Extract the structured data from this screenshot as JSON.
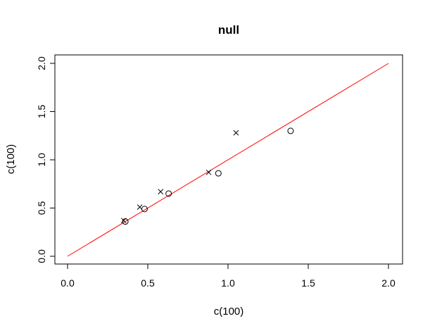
{
  "chart_data": {
    "type": "scatter",
    "title": "null",
    "xlabel": "c(100)",
    "ylabel": "c(100)",
    "xlim": [
      0,
      2
    ],
    "ylim": [
      0,
      2
    ],
    "xticks": [
      "0.0",
      "0.5",
      "1.0",
      "1.5",
      "2.0"
    ],
    "yticks": [
      "0.0",
      "0.5",
      "1.0",
      "1.5",
      "2.0"
    ],
    "grid": false,
    "series": [
      {
        "marker": "circle",
        "color": "#000000",
        "points": [
          {
            "x": 0.36,
            "y": 0.36
          },
          {
            "x": 0.48,
            "y": 0.49
          },
          {
            "x": 0.63,
            "y": 0.65
          },
          {
            "x": 0.94,
            "y": 0.86
          },
          {
            "x": 1.39,
            "y": 1.3
          }
        ]
      },
      {
        "marker": "cross",
        "color": "#000000",
        "points": [
          {
            "x": 0.35,
            "y": 0.37
          },
          {
            "x": 0.45,
            "y": 0.51
          },
          {
            "x": 0.58,
            "y": 0.67
          },
          {
            "x": 0.88,
            "y": 0.87
          },
          {
            "x": 1.05,
            "y": 1.28
          }
        ]
      }
    ],
    "reference_line": {
      "from": [
        0,
        0
      ],
      "to": [
        2,
        2
      ],
      "color": "#ff0000"
    }
  }
}
